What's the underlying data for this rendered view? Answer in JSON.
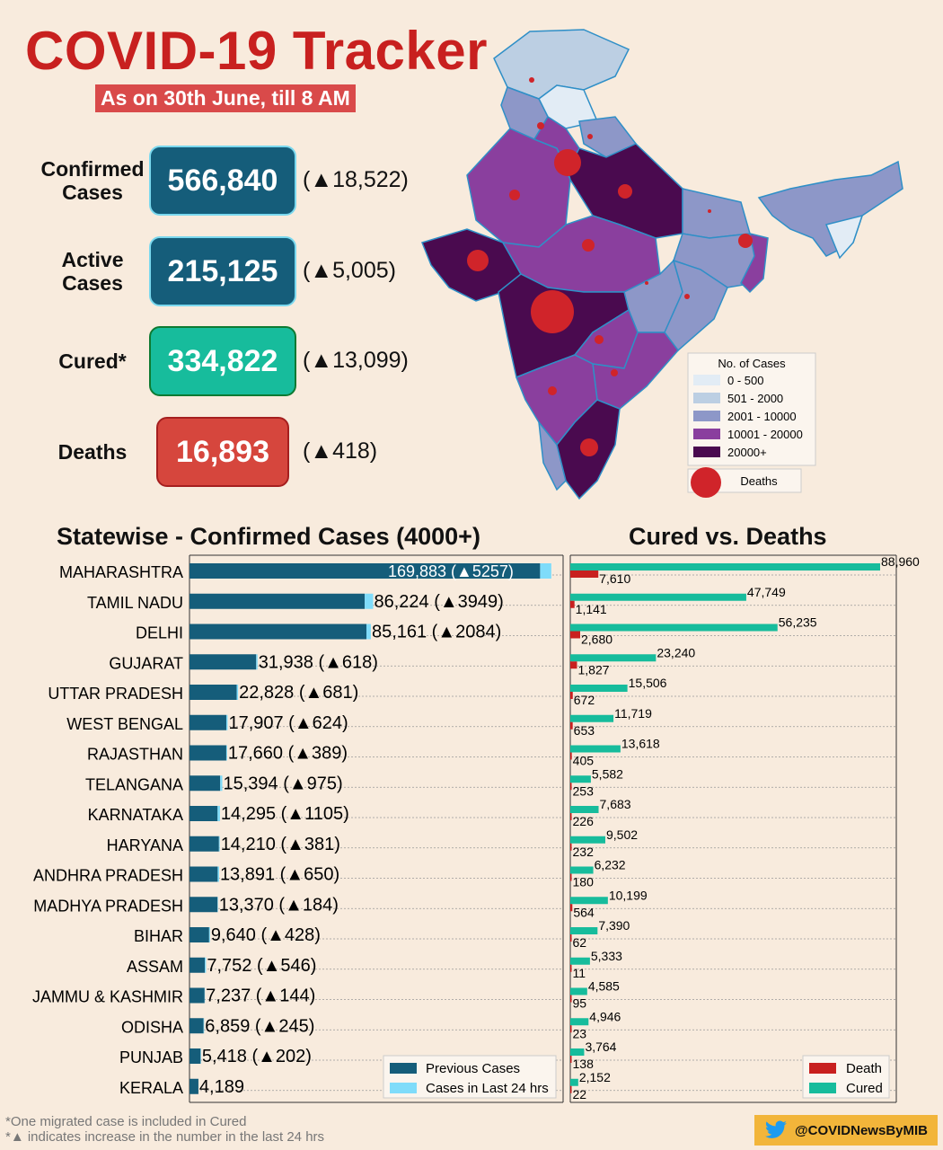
{
  "header": {
    "title": "COVID-19 Tracker",
    "subtitle": "As on 30th June, till 8 AM"
  },
  "stats": [
    {
      "label_lines": [
        "Confirmed",
        "Cases"
      ],
      "value": "566,840",
      "delta": "(▲18,522)",
      "color": "#155d7a"
    },
    {
      "label_lines": [
        "Active",
        "Cases"
      ],
      "value": "215,125",
      "delta": "(▲5,005)",
      "color": "#155d7a"
    },
    {
      "label_lines": [
        "Cured*"
      ],
      "value": "334,822",
      "delta": "(▲13,099)",
      "color": "#17bc9c"
    },
    {
      "label_lines": [
        "Deaths"
      ],
      "value": "16,893",
      "delta": "(▲418)",
      "color": "#d6463d"
    }
  ],
  "map_legend": {
    "title": "No. of Cases",
    "items": [
      {
        "label": "0 - 500",
        "color": "#e2ecf5"
      },
      {
        "label": "501 - 2000",
        "color": "#bccfe3"
      },
      {
        "label": "2001 - 10000",
        "color": "#8d97c8"
      },
      {
        "label": "10001 - 20000",
        "color": "#8a3f9e"
      },
      {
        "label": "20000+",
        "color": "#4a0a4f"
      }
    ],
    "deaths_label": "Deaths"
  },
  "chart_data": [
    {
      "type": "bar",
      "orientation": "horizontal",
      "stacked": true,
      "title": "Statewise - Confirmed Cases (4000+)",
      "categories": [
        "MAHARASHTRA",
        "TAMIL NADU",
        "DELHI",
        "GUJARAT",
        "UTTAR PRADESH",
        "WEST BENGAL",
        "RAJASTHAN",
        "TELANGANA",
        "KARNATAKA",
        "HARYANA",
        "ANDHRA PRADESH",
        "MADHYA PRADESH",
        "BIHAR",
        "ASSAM",
        "JAMMU & KASHMIR",
        "ODISHA",
        "PUNJAB",
        "KERALA"
      ],
      "totals": [
        169883,
        86224,
        85161,
        31938,
        22828,
        17907,
        17660,
        15394,
        14295,
        14210,
        13891,
        13370,
        9640,
        7752,
        7237,
        6859,
        5418,
        4189
      ],
      "series": [
        {
          "name": "Previous Cases",
          "color": "#155d7a",
          "values": [
            164626,
            82275,
            83077,
            31320,
            22147,
            17283,
            17271,
            14419,
            13190,
            13829,
            13241,
            13186,
            9212,
            7206,
            7093,
            6614,
            5216,
            4189
          ]
        },
        {
          "name": "Cases in Last 24 hrs",
          "color": "#7fdcfa",
          "values": [
            5257,
            3949,
            2084,
            618,
            681,
            624,
            389,
            975,
            1105,
            381,
            650,
            184,
            428,
            546,
            144,
            245,
            202,
            0
          ]
        }
      ],
      "labels": [
        "169,883 (▲5257)",
        "86,224 (▲3949)",
        "85,161 (▲2084)",
        "31,938 (▲618)",
        "22,828 (▲681)",
        "17,907 (▲624)",
        "17,660 (▲389)",
        "15,394 (▲975)",
        "14,295 (▲1105)",
        "14,210 (▲381)",
        "13,891 (▲650)",
        "13,370 (▲184)",
        "9,640 (▲428)",
        "7,752 (▲546)",
        "7,237 (▲144)",
        "6,859 (▲245)",
        "5,418 (▲202)",
        "4,189"
      ],
      "legend_position": "bottom-right"
    },
    {
      "type": "bar",
      "orientation": "horizontal",
      "title": "Cured vs. Deaths",
      "categories": [
        "MAHARASHTRA",
        "TAMIL NADU",
        "DELHI",
        "GUJARAT",
        "UTTAR PRADESH",
        "WEST BENGAL",
        "RAJASTHAN",
        "TELANGANA",
        "KARNATAKA",
        "HARYANA",
        "ANDHRA PRADESH",
        "MADHYA PRADESH",
        "BIHAR",
        "ASSAM",
        "JAMMU & KASHMIR",
        "ODISHA",
        "PUNJAB",
        "KERALA"
      ],
      "series": [
        {
          "name": "Cured",
          "color": "#17bc9c",
          "values": [
            88960,
            47749,
            56235,
            23240,
            15506,
            11719,
            13618,
            5582,
            7683,
            9502,
            6232,
            10199,
            7390,
            5333,
            4585,
            4946,
            3764,
            2152
          ],
          "labels": [
            "88,960",
            "47,749",
            "56,235",
            "23,240",
            "15,506",
            "11,719",
            "13,618",
            "5,582",
            "7,683",
            "9,502",
            "6,232",
            "10,199",
            "7,390",
            "5,333",
            "4,585",
            "4,946",
            "3,764",
            "2,152"
          ]
        },
        {
          "name": "Death",
          "color": "#c8201f",
          "values": [
            7610,
            1141,
            2680,
            1827,
            672,
            653,
            405,
            253,
            226,
            232,
            180,
            564,
            62,
            11,
            95,
            23,
            138,
            22
          ],
          "labels": [
            "7,610",
            "1,141",
            "2,680",
            "1,827",
            "672",
            "653",
            "405",
            "253",
            "226",
            "232",
            "180",
            "564",
            "62",
            "11",
            "95",
            "23",
            "138",
            "22"
          ]
        }
      ],
      "legend_position": "bottom-right"
    }
  ],
  "footer": {
    "notes": [
      "*One migrated case is included in Cured",
      "*▲ indicates increase in the number in the last 24 hrs"
    ],
    "handle": "@COVIDNewsByMIB"
  }
}
